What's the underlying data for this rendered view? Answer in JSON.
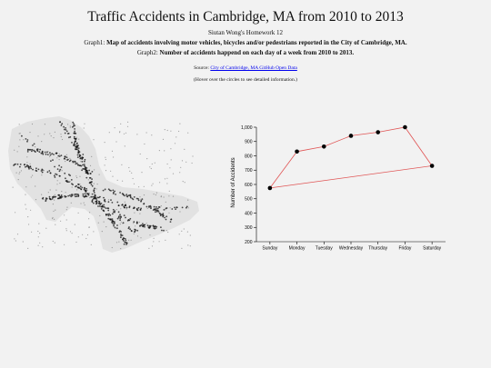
{
  "header": {
    "title": "Traffic Accidents in Cambridge, MA from 2010 to 2013",
    "author": "Siutan Wong's Homework 12",
    "graph1_prefix": "Graph1: ",
    "graph1_text": "Map of accidents involving motor vehicles, bicycles and/or pedestrians reported in the City of Cambridge, MA.",
    "graph2_prefix": "Graph2: ",
    "graph2_text": "Number of accidents happend on each day of a week from 2010 to 2013.",
    "source_prefix": "Source: ",
    "source_link": "City of Cambridge, MA GitHub Open Data",
    "hover_note": "(Hover over the circles to see detailed information.)"
  },
  "colors": {
    "map_fill": "#e2e2e2",
    "map_points": "#111111",
    "line": "#e05555",
    "point": "#000000"
  },
  "chart_data": {
    "type": "line",
    "categories": [
      "Sunday",
      "Monday",
      "Tuesday",
      "Wednesday",
      "Thursday",
      "Friday",
      "Saturday"
    ],
    "values": [
      575,
      830,
      865,
      940,
      965,
      1000,
      730
    ],
    "xlabel": "",
    "ylabel": "Number of Accidents",
    "ylim": [
      200,
      1000
    ],
    "yticks": [
      "200",
      "300",
      "400",
      "500",
      "600",
      "700",
      "800",
      "900",
      "1,000"
    ],
    "line_path_order": [
      0,
      6,
      5,
      4,
      3,
      2,
      1,
      0
    ],
    "grid": false,
    "legend": "none"
  }
}
